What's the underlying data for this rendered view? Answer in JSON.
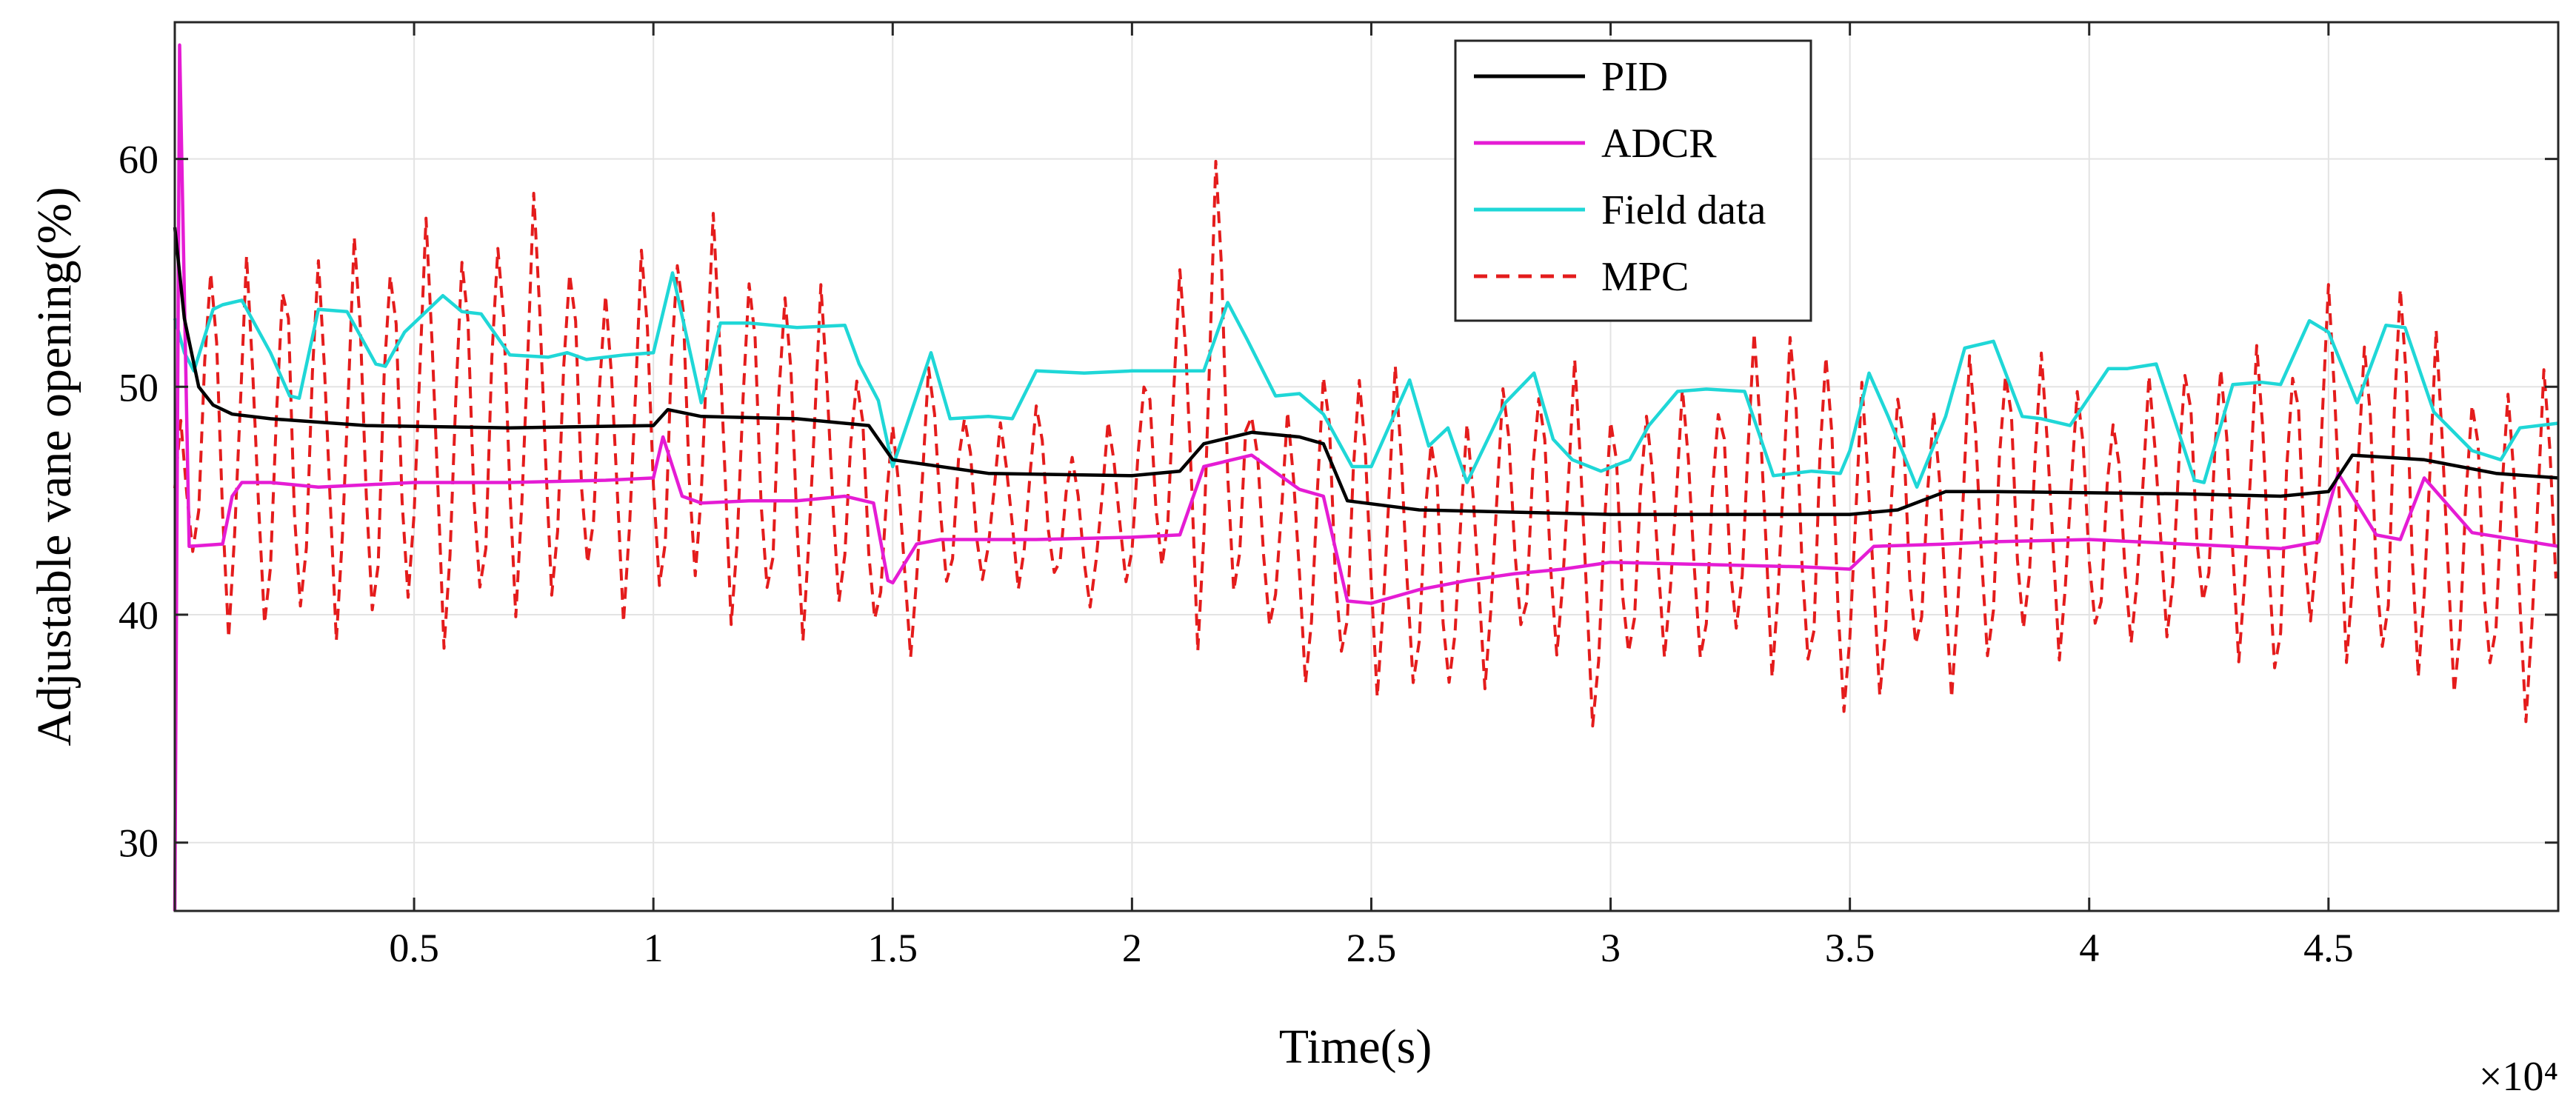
{
  "chart_data": {
    "type": "line",
    "title": "",
    "xlabel": "Time(s)",
    "ylabel": "Adjustable vane opening(%)",
    "x_exponent_label": "×10⁴",
    "xlim": [
      0,
      4.98
    ],
    "ylim": [
      27,
      66
    ],
    "x_scale_note": "x values in units of 10^4 s",
    "xticks": [
      0.5,
      1,
      1.5,
      2,
      2.5,
      3,
      3.5,
      4,
      4.5
    ],
    "xtick_labels": [
      "0.5",
      "1",
      "1.5",
      "2",
      "2.5",
      "3",
      "3.5",
      "4",
      "4.5"
    ],
    "yticks": [
      30,
      40,
      50,
      60
    ],
    "ytick_labels": [
      "30",
      "40",
      "50",
      "60"
    ],
    "grid": true,
    "legend_position": "top-center",
    "series": [
      {
        "name": "PID",
        "color": "#000000",
        "style": "solid",
        "x": [
          0,
          0.02,
          0.05,
          0.08,
          0.12,
          0.2,
          0.4,
          0.7,
          1.0,
          1.03,
          1.1,
          1.3,
          1.45,
          1.5,
          1.7,
          2.0,
          2.1,
          2.15,
          2.25,
          2.35,
          2.4,
          2.45,
          2.6,
          3.0,
          3.5,
          3.6,
          3.7,
          3.8,
          4.2,
          4.4,
          4.5,
          4.55,
          4.7,
          4.85,
          4.98
        ],
        "values": [
          57,
          53,
          50,
          49.2,
          48.8,
          48.6,
          48.3,
          48.2,
          48.3,
          49,
          48.7,
          48.6,
          48.3,
          46.8,
          46.2,
          46.1,
          46.3,
          47.5,
          48,
          47.8,
          47.5,
          45,
          44.6,
          44.4,
          44.4,
          44.6,
          45.4,
          45.4,
          45.3,
          45.2,
          45.4,
          47,
          46.8,
          46.2,
          46
        ]
      },
      {
        "name": "ADCR",
        "color": "#e51cd4",
        "style": "solid",
        "x": [
          0,
          0.01,
          0.03,
          0.1,
          0.12,
          0.14,
          0.2,
          0.3,
          0.4,
          0.5,
          0.7,
          0.9,
          1.0,
          1.02,
          1.06,
          1.1,
          1.2,
          1.3,
          1.4,
          1.46,
          1.49,
          1.5,
          1.55,
          1.6,
          1.8,
          2.0,
          2.1,
          2.15,
          2.25,
          2.35,
          2.4,
          2.45,
          2.5,
          2.6,
          2.7,
          2.8,
          2.9,
          3.0,
          3.2,
          3.4,
          3.5,
          3.55,
          3.7,
          3.8,
          4.0,
          4.2,
          4.4,
          4.48,
          4.52,
          4.6,
          4.65,
          4.7,
          4.8,
          4.98
        ],
        "values": [
          27,
          65,
          43,
          43.1,
          45.2,
          45.8,
          45.8,
          45.6,
          45.7,
          45.8,
          45.8,
          45.9,
          46,
          47.8,
          45.2,
          44.9,
          45,
          45,
          45.2,
          44.9,
          41.5,
          41.4,
          43.1,
          43.3,
          43.3,
          43.4,
          43.5,
          46.5,
          47,
          45.5,
          45.2,
          40.6,
          40.5,
          41.1,
          41.5,
          41.8,
          42,
          42.3,
          42.2,
          42.1,
          42,
          43,
          43.1,
          43.2,
          43.3,
          43.1,
          42.9,
          43.2,
          46.2,
          43.5,
          43.3,
          46,
          43.6,
          43
        ]
      },
      {
        "name": "Field data",
        "color": "#1fd7d7",
        "style": "solid",
        "x": [
          0,
          0.02,
          0.04,
          0.08,
          0.1,
          0.14,
          0.2,
          0.24,
          0.26,
          0.3,
          0.36,
          0.42,
          0.44,
          0.48,
          0.56,
          0.6,
          0.64,
          0.7,
          0.78,
          0.82,
          0.86,
          0.94,
          1.0,
          1.04,
          1.06,
          1.1,
          1.14,
          1.2,
          1.3,
          1.4,
          1.43,
          1.47,
          1.5,
          1.55,
          1.58,
          1.62,
          1.7,
          1.75,
          1.8,
          1.9,
          2.0,
          2.15,
          2.2,
          2.24,
          2.3,
          2.35,
          2.4,
          2.46,
          2.5,
          2.58,
          2.62,
          2.66,
          2.7,
          2.78,
          2.84,
          2.88,
          2.92,
          2.98,
          3.04,
          3.08,
          3.14,
          3.2,
          3.28,
          3.34,
          3.42,
          3.48,
          3.5,
          3.54,
          3.58,
          3.64,
          3.7,
          3.74,
          3.8,
          3.86,
          3.9,
          3.96,
          4.04,
          4.08,
          4.14,
          4.22,
          4.24,
          4.3,
          4.36,
          4.4,
          4.46,
          4.5,
          4.56,
          4.62,
          4.66,
          4.72,
          4.8,
          4.86,
          4.9,
          4.98
        ],
        "values": [
          53,
          51.5,
          50.7,
          53.4,
          53.6,
          53.8,
          51.5,
          49.6,
          49.5,
          53.4,
          53.3,
          51,
          50.9,
          52.4,
          54,
          53.3,
          53.2,
          51.4,
          51.3,
          51.5,
          51.2,
          51.4,
          51.5,
          55,
          53.1,
          49.3,
          52.8,
          52.8,
          52.6,
          52.7,
          51,
          49.4,
          46.5,
          49.6,
          51.5,
          48.6,
          48.7,
          48.6,
          50.7,
          50.6,
          50.7,
          50.7,
          53.7,
          52.1,
          49.6,
          49.7,
          48.8,
          46.5,
          46.5,
          50.3,
          47.4,
          48.2,
          45.8,
          49.3,
          50.6,
          47.7,
          46.8,
          46.3,
          46.8,
          48.3,
          49.8,
          49.9,
          49.8,
          46.1,
          46.3,
          46.2,
          47.2,
          50.6,
          48.7,
          45.6,
          48.7,
          51.7,
          52,
          48.7,
          48.6,
          48.3,
          50.8,
          50.8,
          51,
          45.9,
          45.8,
          50.1,
          50.2,
          50.1,
          52.9,
          52.4,
          49.3,
          52.7,
          52.6,
          48.9,
          47.2,
          46.8,
          48.2,
          48.4
        ]
      },
      {
        "name": "MPC",
        "color": "#e41c1c",
        "style": "dashed",
        "amplitude_note": "high-frequency oscillation, approx. 35 to 61",
        "x": [
          0,
          0.02,
          0.05,
          0.1,
          0.2,
          0.25,
          0.32,
          0.4,
          0.5,
          0.6,
          0.7,
          0.8,
          0.9,
          1.0,
          1.05,
          1.1,
          1.2,
          1.3,
          1.4,
          1.5,
          1.6,
          1.7,
          1.8,
          1.9,
          2.0,
          2.1,
          2.17,
          2.2,
          2.25,
          2.3,
          2.4,
          2.5,
          2.6,
          2.65,
          2.7,
          2.8,
          2.9,
          2.97,
          3.1,
          3.2,
          3.3,
          3.4,
          3.45,
          3.5,
          3.6,
          3.7,
          3.8,
          3.9,
          4.0,
          4.1,
          4.2,
          4.3,
          4.4,
          4.5,
          4.6,
          4.65,
          4.7,
          4.8,
          4.9,
          4.98
        ],
        "upper": [
          46,
          54,
          57,
          57.5,
          54,
          59,
          56,
          57.5,
          58,
          57,
          59,
          58,
          55,
          57,
          58,
          58.5,
          56,
          56,
          53,
          49,
          52,
          48,
          50,
          47,
          50,
          56,
          61,
          60,
          50,
          48,
          52,
          52,
          50,
          49,
          49,
          51,
          52,
          50,
          50,
          50,
          53,
          53,
          54,
          50,
          51,
          50,
          53,
          52,
          50,
          50,
          52,
          52,
          52,
          55,
          52,
          57,
          53,
          51,
          51,
          51
        ],
        "lower": [
          40,
          40,
          41,
          38,
          39,
          37,
          39,
          38,
          39,
          38,
          39,
          40,
          40,
          39,
          40,
          40,
          39,
          38,
          40,
          37,
          40,
          41,
          41,
          40,
          41,
          40,
          37,
          38,
          41,
          38,
          36,
          36,
          36,
          35,
          36,
          38,
          37,
          34.5,
          38,
          37,
          38,
          36,
          35,
          34.5,
          37,
          36,
          37,
          38,
          38,
          38,
          39,
          38,
          36,
          39,
          36,
          37,
          36,
          36,
          35,
          36
        ]
      }
    ]
  }
}
